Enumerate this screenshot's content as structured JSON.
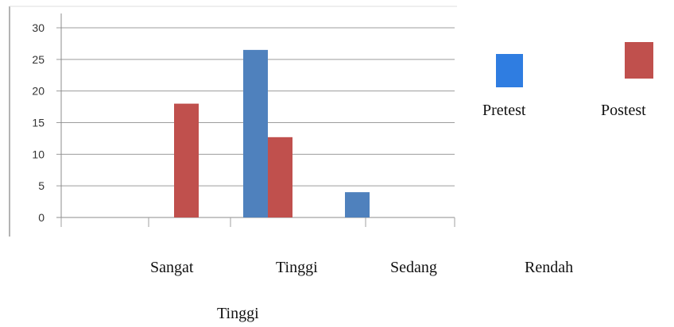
{
  "chart_data": {
    "type": "bar",
    "categories": [
      "Sangat Tinggi",
      "Tinggi",
      "Sedang",
      "Rendah"
    ],
    "category_label_lines": [
      [
        "Sangat",
        "Tinggi"
      ],
      [
        "Tinggi"
      ],
      [
        "Sedang"
      ],
      [
        "Rendah"
      ]
    ],
    "series": [
      {
        "name": "Pretest",
        "color": "#4f81bd",
        "values": [
          0,
          26.5,
          4,
          0
        ]
      },
      {
        "name": "Postest",
        "color": "#c0504d",
        "values": [
          18,
          12.7,
          0,
          0
        ]
      }
    ],
    "ylim": [
      0,
      30
    ],
    "yticks": [
      0,
      5,
      10,
      15,
      20,
      25,
      30
    ],
    "grid": true,
    "legend_position": "right",
    "legend_colors": [
      "#2f7de1",
      "#c0504d"
    ]
  }
}
